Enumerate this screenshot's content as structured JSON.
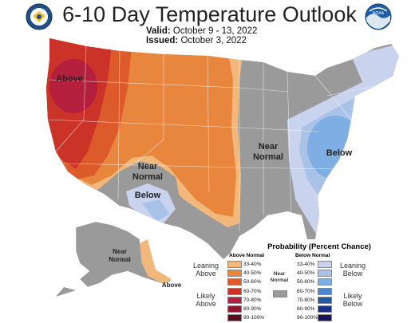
{
  "header": {
    "title": "6-10 Day Temperature Outlook",
    "valid_label": "Valid:",
    "valid_value": "October 9 - 13, 2022",
    "issued_label": "Issued:",
    "issued_value": "October 3, 2022"
  },
  "logos": {
    "left": "commerce-seal",
    "right": "noaa-logo",
    "right_text": "NOAA"
  },
  "map_labels": {
    "above_west": "Above",
    "near_normal_sw_1": "Near",
    "near_normal_sw_2": "Normal",
    "below_sw": "Below",
    "near_normal_central_1": "Near",
    "near_normal_central_2": "Normal",
    "below_east": "Below",
    "alaska_near_1": "Near",
    "alaska_near_2": "Normal",
    "alaska_above": "Above"
  },
  "legend": {
    "title": "Probability (Percent Chance)",
    "above_header": "Above Normal",
    "below_header": "Below Normal",
    "near_normal_1": "Near",
    "near_normal_2": "Normal",
    "leaning_above_1": "Leaning",
    "leaning_above_2": "Above",
    "likely_above_1": "Likely",
    "likely_above_2": "Above",
    "leaning_below_1": "Leaning",
    "leaning_below_2": "Below",
    "likely_below_1": "Likely",
    "likely_below_2": "Below",
    "above": [
      {
        "label": "33-40%",
        "color": "#f2b77a"
      },
      {
        "label": "40-50%",
        "color": "#e9863e"
      },
      {
        "label": "50-60%",
        "color": "#dd5a2a"
      },
      {
        "label": "60-70%",
        "color": "#cc3328"
      },
      {
        "label": "70-80%",
        "color": "#b31f3c"
      },
      {
        "label": "80-90%",
        "color": "#8e1631"
      },
      {
        "label": "90-100%",
        "color": "#5e0d1e"
      }
    ],
    "below": [
      {
        "label": "33-40%",
        "color": "#c9d3ee"
      },
      {
        "label": "40-50%",
        "color": "#a9c3e8"
      },
      {
        "label": "50-60%",
        "color": "#7eaee3"
      },
      {
        "label": "60-70%",
        "color": "#4a86cf"
      },
      {
        "label": "70-80%",
        "color": "#2159a7"
      },
      {
        "label": "80-90%",
        "color": "#1a2f86"
      },
      {
        "label": "90-100%",
        "color": "#19145a"
      }
    ],
    "near_color": "#9a9a9a"
  }
}
